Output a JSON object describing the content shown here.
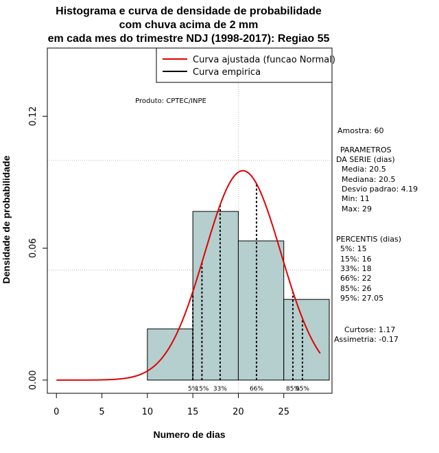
{
  "chart_data": {
    "type": "bar",
    "title": [
      "Histograma e curva de densidade de probabilidade",
      "com chuva acima de 2 mm",
      "em cada mes do trimestre NDJ (1998-2017): Regiao 55"
    ],
    "xlabel": "Numero de dias",
    "ylabel": "Densidade de probabilidade",
    "xlim": [
      -1,
      30.3
    ],
    "ylim": [
      -0.006,
      0.151
    ],
    "x_ticks": [
      0,
      5,
      10,
      15,
      20,
      25
    ],
    "x_tick_labels": [
      "0",
      "5",
      "10",
      "15",
      "20",
      "25"
    ],
    "y_ticks": [
      0.0,
      0.06,
      0.12
    ],
    "y_tick_labels": [
      "0.00",
      "0.06",
      "0.12"
    ],
    "grid_y": [
      0.05,
      0.1
    ],
    "grid_x": [
      20
    ],
    "bins": [
      {
        "start": 10,
        "end": 15,
        "density": 0.0233
      },
      {
        "start": 15,
        "end": 20,
        "density": 0.0767
      },
      {
        "start": 20,
        "end": 25,
        "density": 0.0633
      },
      {
        "start": 25,
        "end": 30,
        "density": 0.0367
      }
    ],
    "bin_fill": "#b5cece",
    "curve_color": "#e00000",
    "normal_curve": {
      "mean": 20.5,
      "sd": 4.19,
      "x_from": 0,
      "x_to": 29
    },
    "percentile_lines": [
      {
        "x": 15,
        "label": "5%"
      },
      {
        "x": 16,
        "label": "15%"
      },
      {
        "x": 18,
        "label": "33%"
      },
      {
        "x": 22,
        "label": "66%"
      },
      {
        "x": 26,
        "label": "85%"
      },
      {
        "x": 27.05,
        "label": "95%"
      }
    ],
    "legend": {
      "placement": "top-right",
      "entries": [
        {
          "label": "Curva ajustada (funcao Normal)",
          "color": "#e00000"
        },
        {
          "label": "Curva empirica",
          "color": "#000000"
        }
      ]
    },
    "annotation": "Produto: CPTEC/INPE"
  },
  "side_panel": {
    "amostra": "Amostra: 60",
    "params_title_1": "PARAMETROS",
    "params_title_2": "DA SERIE (dias)",
    "media": "Media: 20.5",
    "mediana": "Mediana: 20.5",
    "desvio": "Desvio padrao: 4.19",
    "min": "Min: 11",
    "max": "Max: 29",
    "percentis_title": "PERCENTIS (dias)",
    "p5": "5%: 15",
    "p15": "15%: 16",
    "p33": "33%: 18",
    "p66": "66%: 22",
    "p85": "85%: 26",
    "p95": "95%: 27.05",
    "curtose": "Curtose: 1.17",
    "assimetria": "Assimetria: -0.17"
  }
}
